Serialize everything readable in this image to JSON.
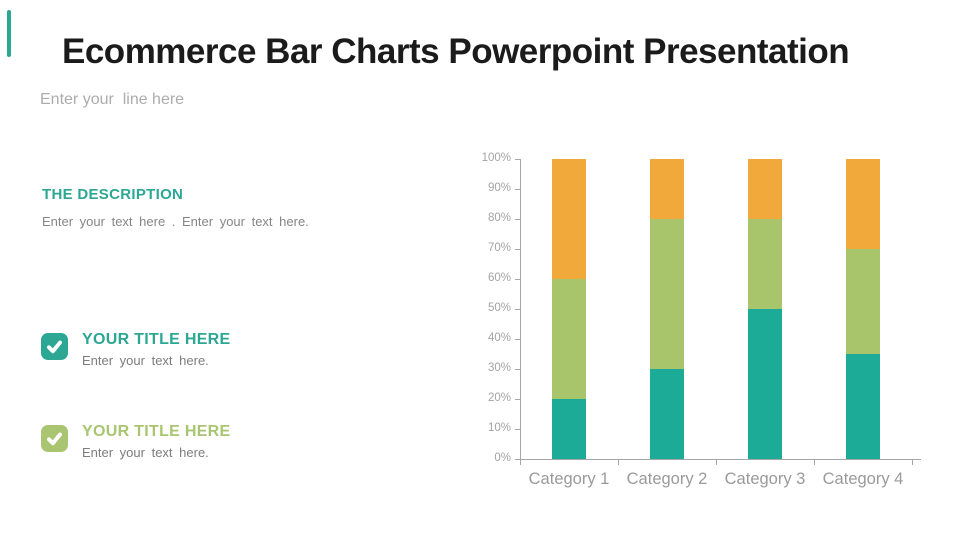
{
  "header": {
    "title": "Ecommerce Bar Charts Powerpoint Presentation",
    "subtitle": "Enter your  line here"
  },
  "description": {
    "heading": "THE DESCRIPTION",
    "body": "Enter your text here . Enter your text here."
  },
  "features": [
    {
      "title": "YOUR TITLE HERE",
      "body": "Enter your text here.",
      "color": "#2ba794",
      "icon": "check-icon"
    },
    {
      "title": "YOUR TITLE HERE",
      "body": "Enter your text here.",
      "color": "#a9c572",
      "icon": "check-icon"
    }
  ],
  "colors": {
    "accent_teal": "#2ba794",
    "accent_green": "#a9c572",
    "bar_teal": "#1bab96",
    "bar_green": "#a9c56b",
    "bar_orange": "#f2a93c",
    "axis_gray": "#a6a6a6",
    "label_gray": "#9a9a9a"
  },
  "chart_data": {
    "type": "bar",
    "stacked": true,
    "title": "",
    "xlabel": "",
    "ylabel": "",
    "categories": [
      "Category 1",
      "Category 2",
      "Category 3",
      "Category 4"
    ],
    "series": [
      {
        "name": "teal",
        "color": "#1bab96",
        "values": [
          20,
          30,
          50,
          35
        ]
      },
      {
        "name": "green",
        "color": "#a9c56b",
        "values": [
          40,
          50,
          30,
          35
        ]
      },
      {
        "name": "orange",
        "color": "#f2a93c",
        "values": [
          40,
          20,
          20,
          30
        ]
      }
    ],
    "y_ticks": [
      "0%",
      "10%",
      "20%",
      "30%",
      "40%",
      "50%",
      "60%",
      "70%",
      "80%",
      "90%",
      "100%"
    ],
    "ylim": [
      0,
      100
    ],
    "grid": false,
    "legend": "none"
  }
}
